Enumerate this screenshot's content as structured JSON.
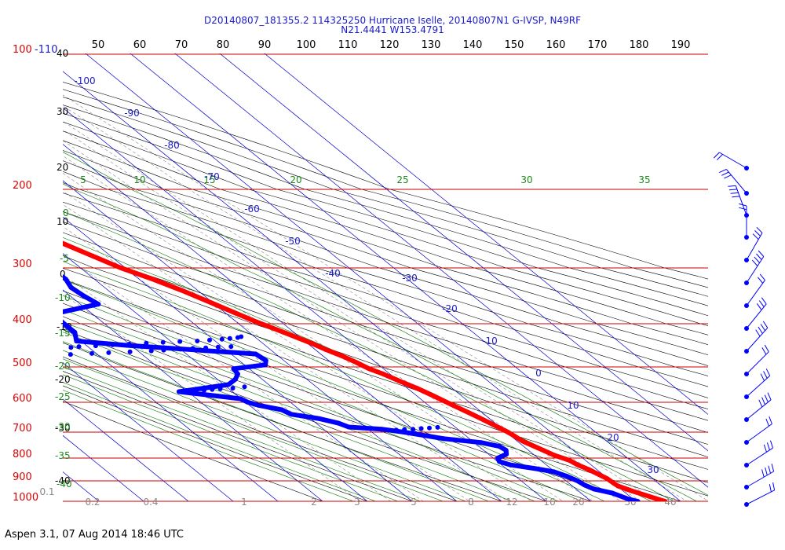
{
  "title_lines": [
    "D20140807_181355.2 114325250 Hurricane Iselle, 20140807N1 G-IVSP, N49RF",
    "N21.4441 W153.4791"
  ],
  "footer": "Aspen 3.1, 07 Aug 2014  18:46 UTC",
  "colors": {
    "temperature": "#ff0000",
    "dewpoint": "#0000ff",
    "isobar": "#cc0000",
    "isotherm": "#0000cc",
    "dry_adiabat": "#000000",
    "moist_adiabat": "#007700",
    "mixing_ratio": "#888888",
    "label_blue": "#1a1acc",
    "label_green": "#1a8a1a",
    "label_red": "#dd0000"
  },
  "chart_data": {
    "type": "line",
    "kind": "skew-T log-p sounding",
    "pressure_labels_hpa": [
      "100",
      "200",
      "300",
      "400",
      "500",
      "600",
      "700",
      "800",
      "900",
      "1000"
    ],
    "top_pressure_label": "-110",
    "left_temperature_labels": [
      "40",
      "30",
      "20",
      "10",
      "0",
      "-10",
      "-20",
      "-30",
      "-40"
    ],
    "left_green_labels": [
      "0",
      "-5",
      "-10",
      "-15",
      "-20",
      "-25",
      "-30",
      "-35",
      "-40"
    ],
    "top_axis_labels": [
      "50",
      "60",
      "70",
      "80",
      "90",
      "100",
      "110",
      "120",
      "130",
      "140",
      "150",
      "160",
      "170",
      "180",
      "190"
    ],
    "upper_green_labels": [
      "5",
      "10",
      "15",
      "20",
      "25",
      "30",
      "35"
    ],
    "isotherm_labels": [
      "-100",
      "-90",
      "-80",
      "-70",
      "-60",
      "-50",
      "-40",
      "-30",
      "-20",
      "-10",
      "0",
      "10",
      "20",
      "30"
    ],
    "mixing_ratio_labels": [
      "0.1",
      "0.2",
      "0.4",
      "1",
      "2",
      "3",
      "5",
      "8",
      "12",
      "16",
      "20",
      "30",
      "40"
    ],
    "series": [
      {
        "name": "Temperature",
        "values_hpa_c": [
          [
            1000,
            26.5
          ],
          [
            990,
            25.5
          ],
          [
            970,
            23.8
          ],
          [
            950,
            22.0
          ],
          [
            925,
            20.2
          ],
          [
            910,
            20.0
          ],
          [
            890,
            19.8
          ],
          [
            870,
            19.0
          ],
          [
            850,
            18.2
          ],
          [
            830,
            17.0
          ],
          [
            810,
            16.4
          ],
          [
            790,
            14.5
          ],
          [
            760,
            12.7
          ],
          [
            735,
            11.2
          ],
          [
            715,
            10.8
          ],
          [
            700,
            10.4
          ],
          [
            670,
            8.9
          ],
          [
            640,
            7.3
          ],
          [
            610,
            5.5
          ],
          [
            580,
            3.6
          ],
          [
            560,
            2.1
          ],
          [
            540,
            0.2
          ],
          [
            520,
            -1.5
          ],
          [
            505,
            -3.2
          ],
          [
            490,
            -4.3
          ],
          [
            475,
            -5.7
          ],
          [
            460,
            -7.6
          ],
          [
            445,
            -9.1
          ],
          [
            425,
            -11.6
          ],
          [
            410,
            -13.6
          ],
          [
            395,
            -15.8
          ],
          [
            380,
            -17.9
          ],
          [
            360,
            -20.7
          ],
          [
            340,
            -23.6
          ],
          [
            320,
            -27.0
          ],
          [
            300,
            -31.0
          ],
          [
            285,
            -34.0
          ],
          [
            270,
            -37.0
          ],
          [
            258,
            -39.5
          ],
          [
            246,
            -42.0
          ],
          [
            233,
            -45.0
          ],
          [
            220,
            -48.0
          ],
          [
            210,
            -51.0
          ],
          [
            202,
            -53.0
          ],
          [
            196,
            -55.0
          ]
        ],
        "extra_points_hpa_c": [
          [
            180,
            -59
          ]
        ]
      },
      {
        "name": "Dewpoint",
        "values_hpa_c": [
          [
            1000,
            20.4
          ],
          [
            990,
            19.0
          ],
          [
            975,
            18.0
          ],
          [
            960,
            17.0
          ],
          [
            940,
            14.0
          ],
          [
            920,
            13.0
          ],
          [
            900,
            12.6
          ],
          [
            880,
            11.5
          ],
          [
            860,
            9.8
          ],
          [
            845,
            6.2
          ],
          [
            830,
            2.0
          ],
          [
            815,
            0.4
          ],
          [
            800,
            1.0
          ],
          [
            785,
            4.0
          ],
          [
            770,
            5.0
          ],
          [
            755,
            4.6
          ],
          [
            740,
            1.5
          ],
          [
            725,
            -5.7
          ],
          [
            700,
            -12.8
          ],
          [
            690,
            -17.0
          ],
          [
            683,
            -23.8
          ],
          [
            670,
            -25.0
          ],
          [
            655,
            -28.0
          ],
          [
            640,
            -33.2
          ],
          [
            625,
            -34.0
          ],
          [
            610,
            -38.0
          ],
          [
            600,
            -39.5
          ],
          [
            590,
            -40.2
          ],
          [
            580,
            -46.0
          ],
          [
            570,
            -52.0
          ],
          [
            550,
            -39.0
          ],
          [
            535,
            -36.0
          ],
          [
            520,
            -34.0
          ],
          [
            505,
            -33.5
          ],
          [
            495,
            -25.3
          ],
          [
            485,
            -24.0
          ],
          [
            470,
            -24.5
          ],
          [
            450,
            -51.0
          ],
          [
            440,
            -61.0
          ],
          [
            420,
            -59.0
          ],
          [
            405,
            -59.0
          ],
          [
            395,
            -59.0
          ],
          [
            380,
            -57.0
          ],
          [
            365,
            -46.0
          ],
          [
            350,
            -47.0
          ],
          [
            335,
            -47.5
          ],
          [
            320,
            -46.4
          ],
          [
            300,
            -47.0
          ],
          [
            290,
            -51.0
          ],
          [
            283,
            -56.6
          ],
          [
            278,
            -63.0
          ],
          [
            268,
            -72.0
          ],
          [
            260,
            -74.0
          ],
          [
            250,
            -70.0
          ],
          [
            243,
            -67.0
          ]
        ],
        "scatter_points_hpa_c": [
          [
            458,
            -68
          ],
          [
            455,
            -64
          ],
          [
            453,
            -62
          ],
          [
            451,
            -58
          ],
          [
            449,
            -54
          ],
          [
            447,
            -50
          ],
          [
            445,
            -46
          ],
          [
            443,
            -42
          ],
          [
            441,
            -38
          ],
          [
            440,
            -34
          ],
          [
            438,
            -31
          ],
          [
            436,
            -28
          ],
          [
            434,
            -26
          ],
          [
            432,
            -24
          ],
          [
            430,
            -23
          ],
          [
            476,
            -77
          ],
          [
            474,
            -72
          ],
          [
            473,
            -69
          ],
          [
            471,
            -66
          ],
          [
            469,
            -61
          ],
          [
            467,
            -57
          ],
          [
            465,
            -52
          ],
          [
            463,
            -47
          ],
          [
            461,
            -44
          ],
          [
            459,
            -40
          ],
          [
            457,
            -37
          ],
          [
            456,
            -34
          ],
          [
            454,
            -31
          ],
          [
            453,
            -28
          ],
          [
            568,
            -48
          ],
          [
            566,
            -46
          ],
          [
            564,
            -44
          ],
          [
            562,
            -42
          ],
          [
            560,
            -39
          ],
          [
            556,
            -36
          ],
          [
            693,
            -14
          ],
          [
            691,
            -12
          ],
          [
            690,
            -10
          ],
          [
            688,
            -8
          ],
          [
            686,
            -6
          ],
          [
            684,
            -4
          ]
        ]
      }
    ]
  }
}
